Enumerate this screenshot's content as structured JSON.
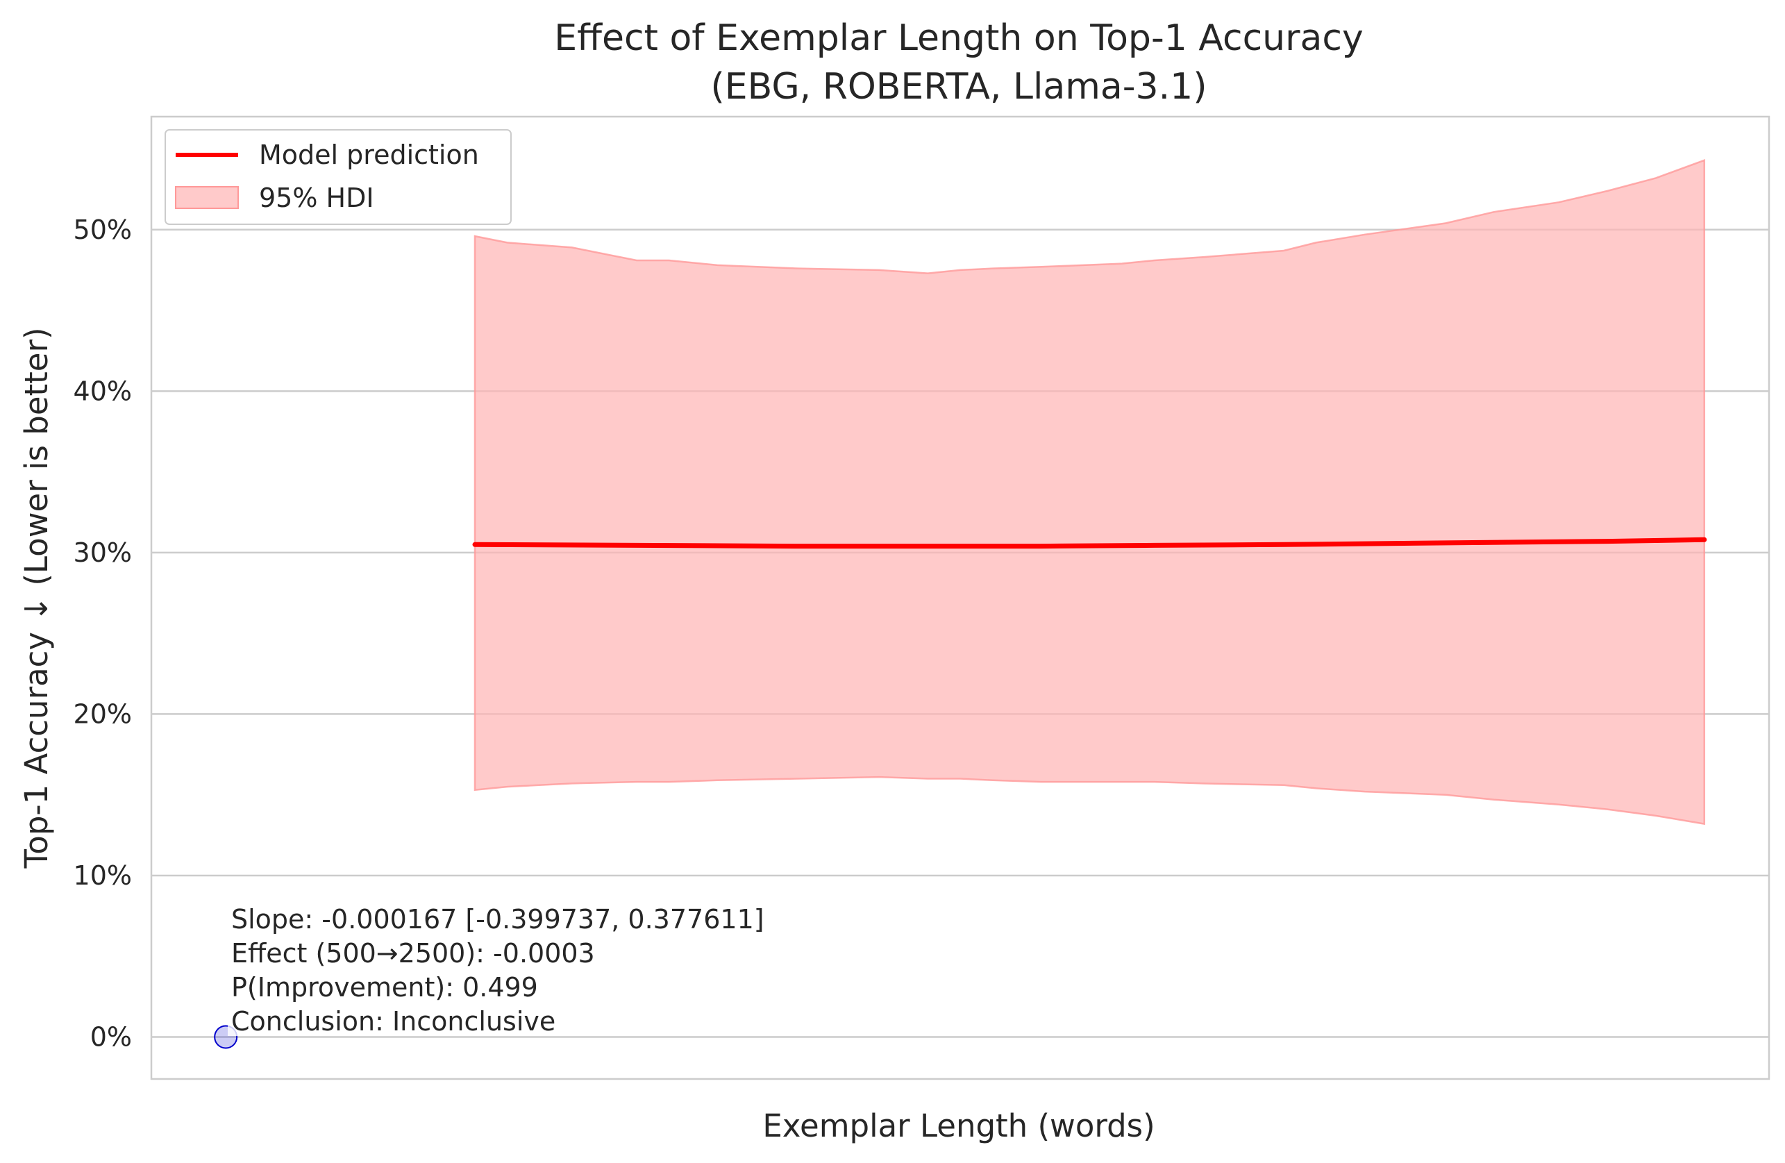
{
  "chart_data": {
    "type": "line",
    "title": "Effect of Exemplar Length on Top-1 Accuracy",
    "subtitle": "(EBG, ROBERTA, Llama-3.1)",
    "xlabel": "Exemplar Length (words)",
    "ylabel": "Top-1 Accuracy ↓ (Lower is better)",
    "ylim": [
      -0.026,
      0.57
    ],
    "xlim": [
      0,
      100
    ],
    "y_ticks": [
      0,
      0.1,
      0.2,
      0.3,
      0.4,
      0.5
    ],
    "y_tick_labels": [
      "0%",
      "10%",
      "20%",
      "30%",
      "40%",
      "50%"
    ],
    "grid": "horizontal",
    "legend": {
      "placement": "top-left",
      "entries": [
        {
          "label": "Model prediction",
          "kind": "line",
          "color": "#ff0000"
        },
        {
          "label": "95% HDI",
          "kind": "patch",
          "color": "#ffb3b3"
        }
      ]
    },
    "series": [
      {
        "name": "Model prediction",
        "color": "#ff0000",
        "x": [
          20,
          30,
          40,
          47,
          55,
          62,
          70,
          80,
          90,
          96
        ],
        "y": [
          0.305,
          0.3045,
          0.304,
          0.304,
          0.304,
          0.3045,
          0.305,
          0.306,
          0.307,
          0.308
        ]
      }
    ],
    "band": {
      "name": "95% HDI",
      "color": "#ffb3b3",
      "x": [
        20,
        22,
        26,
        30,
        32,
        35,
        40,
        45,
        48,
        50,
        52,
        55,
        60,
        62,
        65,
        70,
        72,
        75,
        80,
        83,
        87,
        90,
        93,
        96
      ],
      "upper": [
        0.496,
        0.492,
        0.489,
        0.481,
        0.481,
        0.478,
        0.476,
        0.475,
        0.473,
        0.475,
        0.476,
        0.477,
        0.479,
        0.481,
        0.483,
        0.487,
        0.492,
        0.497,
        0.504,
        0.511,
        0.517,
        0.524,
        0.532,
        0.543
      ],
      "lower": [
        0.153,
        0.155,
        0.157,
        0.158,
        0.158,
        0.159,
        0.16,
        0.161,
        0.16,
        0.16,
        0.159,
        0.158,
        0.158,
        0.158,
        0.157,
        0.156,
        0.154,
        0.152,
        0.15,
        0.147,
        0.144,
        0.141,
        0.137,
        0.132
      ]
    },
    "points": [
      {
        "x": 4.6,
        "y": 0.0,
        "color": "#0000cc"
      }
    ],
    "annotation": [
      "Slope: -0.000167 [-0.399737, 0.377611]",
      "Effect (500→2500): -0.0003",
      "P(Improvement): 0.499",
      "Conclusion: Inconclusive"
    ]
  }
}
